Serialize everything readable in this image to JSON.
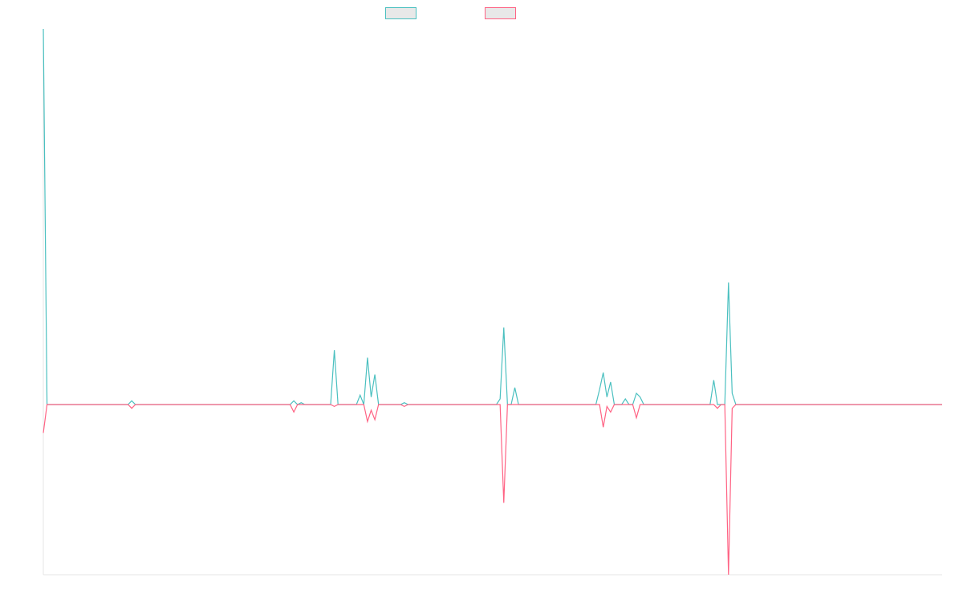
{
  "chart_data": {
    "type": "line",
    "title": "",
    "xlabel": "",
    "ylabel": "",
    "grid": false,
    "legend_position": "top-center",
    "x_count": 245,
    "xlim": [
      0,
      244
    ],
    "ylim": [
      -0.45,
      1.0
    ],
    "series": [
      {
        "color": "#4bc0c0",
        "points": [
          [
            0,
            1.0
          ],
          [
            1,
            0.0
          ],
          [
            23,
            0.0
          ],
          [
            24,
            0.01
          ],
          [
            25,
            0.0
          ],
          [
            67,
            0.0
          ],
          [
            68,
            0.01
          ],
          [
            69,
            0.0
          ],
          [
            70,
            0.005
          ],
          [
            71,
            0.0
          ],
          [
            78,
            0.0
          ],
          [
            79,
            0.145
          ],
          [
            80,
            0.0
          ],
          [
            85,
            0.0
          ],
          [
            86,
            0.025
          ],
          [
            87,
            0.0
          ],
          [
            88,
            0.125
          ],
          [
            89,
            0.02
          ],
          [
            90,
            0.08
          ],
          [
            91,
            0.0
          ],
          [
            97,
            0.0
          ],
          [
            98,
            0.005
          ],
          [
            99,
            0.0
          ],
          [
            123,
            0.0
          ],
          [
            124,
            0.015
          ],
          [
            125,
            0.205
          ],
          [
            126,
            0.0
          ],
          [
            127,
            0.0
          ],
          [
            128,
            0.045
          ],
          [
            129,
            0.0
          ],
          [
            150,
            0.0
          ],
          [
            151,
            0.04
          ],
          [
            152,
            0.085
          ],
          [
            153,
            0.02
          ],
          [
            154,
            0.06
          ],
          [
            155,
            0.0
          ],
          [
            157,
            0.0
          ],
          [
            158,
            0.015
          ],
          [
            159,
            0.0
          ],
          [
            160,
            0.0
          ],
          [
            161,
            0.03
          ],
          [
            162,
            0.02
          ],
          [
            163,
            0.0
          ],
          [
            181,
            0.0
          ],
          [
            182,
            0.065
          ],
          [
            183,
            0.0
          ],
          [
            185,
            0.0
          ],
          [
            186,
            0.325
          ],
          [
            187,
            0.03
          ],
          [
            188,
            0.0
          ],
          [
            244,
            0.0
          ]
        ]
      },
      {
        "color": "#ff6384",
        "points": [
          [
            0,
            -0.075
          ],
          [
            1,
            0.0
          ],
          [
            23,
            0.0
          ],
          [
            24,
            -0.01
          ],
          [
            25,
            0.0
          ],
          [
            67,
            0.0
          ],
          [
            68,
            -0.02
          ],
          [
            69,
            0.0
          ],
          [
            78,
            0.0
          ],
          [
            79,
            -0.005
          ],
          [
            80,
            0.0
          ],
          [
            87,
            0.0
          ],
          [
            88,
            -0.045
          ],
          [
            89,
            -0.015
          ],
          [
            90,
            -0.04
          ],
          [
            91,
            0.0
          ],
          [
            97,
            0.0
          ],
          [
            98,
            -0.005
          ],
          [
            99,
            0.0
          ],
          [
            124,
            0.0
          ],
          [
            125,
            -0.26
          ],
          [
            126,
            0.0
          ],
          [
            151,
            0.0
          ],
          [
            152,
            -0.06
          ],
          [
            153,
            -0.005
          ],
          [
            154,
            -0.02
          ],
          [
            155,
            0.0
          ],
          [
            160,
            0.0
          ],
          [
            161,
            -0.035
          ],
          [
            162,
            0.0
          ],
          [
            182,
            0.0
          ],
          [
            183,
            -0.01
          ],
          [
            184,
            0.0
          ],
          [
            185,
            0.0
          ],
          [
            186,
            -0.45
          ],
          [
            187,
            -0.01
          ],
          [
            188,
            0.0
          ],
          [
            244,
            0.0
          ]
        ]
      }
    ]
  }
}
